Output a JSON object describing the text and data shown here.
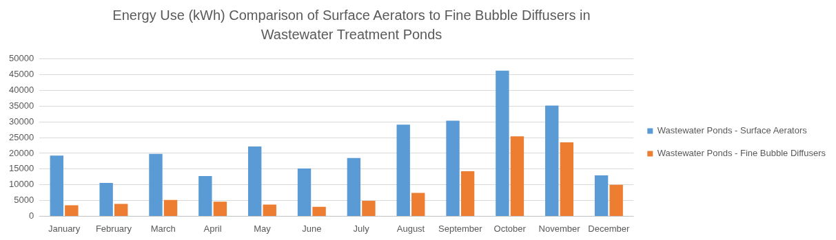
{
  "chart_data": {
    "type": "bar",
    "title": "Energy Use (kWh) Comparison of Surface Aerators to Fine Bubble Diffusers in Wastewater Treatment Ponds",
    "categories": [
      "January",
      "February",
      "March",
      "April",
      "May",
      "June",
      "July",
      "August",
      "September",
      "October",
      "November",
      "December"
    ],
    "series": [
      {
        "name": "Wastewater Ponds - Surface Aerators",
        "color": "#5b9bd5",
        "values": [
          19300,
          10600,
          19800,
          12800,
          22200,
          15200,
          18500,
          29100,
          30400,
          46300,
          35200,
          13000
        ]
      },
      {
        "name": "Wastewater Ponds - Fine Bubble Diffusers",
        "color": "#ed7d31",
        "values": [
          3500,
          3900,
          5200,
          4600,
          3700,
          3000,
          4900,
          7400,
          14300,
          25400,
          23500,
          10000
        ]
      }
    ],
    "ylim": [
      0,
      50000
    ],
    "yticks": [
      0,
      5000,
      10000,
      15000,
      20000,
      25000,
      30000,
      35000,
      40000,
      45000,
      50000
    ],
    "grid": "y",
    "legend": "right"
  }
}
